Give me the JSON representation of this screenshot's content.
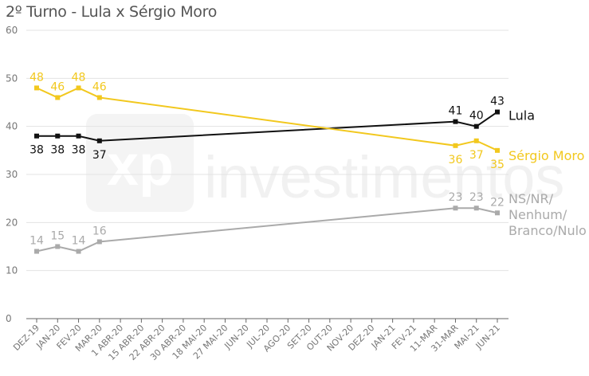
{
  "title": "2º Turno - Lula x Sérgio Moro",
  "watermark": "investimentos",
  "colors": {
    "lula": "#111111",
    "moro": "#f2c81e",
    "ns": "#aaaaaa",
    "grid": "#e3e3e3",
    "axis": "#666666"
  },
  "chart_data": {
    "type": "line",
    "title": "2º Turno - Lula x Sérgio Moro",
    "xlabel": "",
    "ylabel": "",
    "ylim": [
      0,
      60
    ],
    "yticks": [
      0,
      10,
      20,
      30,
      40,
      50,
      60
    ],
    "grid": true,
    "legend": "line-end labels",
    "categories": [
      "DEZ-19",
      "JAN-20",
      "FEV-20",
      "MAR-20",
      "1 ABR-20",
      "15 ABR-20",
      "22 ABR-20",
      "30 ABR-20",
      "18 MAI-20",
      "27 MAI-20",
      "JUN-20",
      "JUL-20",
      "AGO-20",
      "SET-20",
      "OUT-20",
      "NOV-20",
      "DEZ-20",
      "JAN-21",
      "FEV-21",
      "11-MAR",
      "31-MAR",
      "MAI-21",
      "JUN-21"
    ],
    "series": [
      {
        "name": "Lula",
        "color_key": "lula",
        "points": [
          [
            0,
            38
          ],
          [
            1,
            38
          ],
          [
            2,
            38
          ],
          [
            3,
            37
          ],
          [
            20,
            41
          ],
          [
            21,
            40
          ],
          [
            22,
            43
          ]
        ],
        "label_values": [
          "38",
          "38",
          "38",
          "37",
          "41",
          "40",
          "43"
        ]
      },
      {
        "name": "Sérgio Moro",
        "color_key": "moro",
        "points": [
          [
            0,
            48
          ],
          [
            1,
            46
          ],
          [
            2,
            48
          ],
          [
            3,
            46
          ],
          [
            20,
            36
          ],
          [
            21,
            37
          ],
          [
            22,
            35
          ]
        ],
        "label_values": [
          "48",
          "46",
          "48",
          "46",
          "36",
          "37",
          "35"
        ]
      },
      {
        "name": "NS/NR/ Nenhum/ Branco/Nulo",
        "name_lines": [
          "NS/NR/",
          "Nenhum/",
          "Branco/Nulo"
        ],
        "color_key": "ns",
        "points": [
          [
            0,
            14
          ],
          [
            1,
            15
          ],
          [
            2,
            14
          ],
          [
            3,
            16
          ],
          [
            20,
            23
          ],
          [
            21,
            23
          ],
          [
            22,
            22
          ]
        ],
        "label_values": [
          "14",
          "15",
          "14",
          "16",
          "23",
          "23",
          "22"
        ]
      }
    ]
  }
}
